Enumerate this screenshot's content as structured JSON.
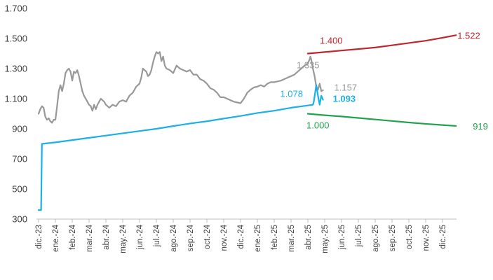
{
  "chart_data": {
    "type": "line",
    "title": "",
    "xlabel": "",
    "ylabel": "",
    "ylim": [
      300,
      1700
    ],
    "y_ticks": [
      300,
      500,
      700,
      900,
      1100,
      1300,
      1500,
      1700
    ],
    "y_tick_labels": [
      "300",
      "500",
      "700",
      "900",
      "1.100",
      "1.300",
      "1.500",
      "1.700"
    ],
    "x_tick_labels": [
      "dic.-23",
      "ene.-24",
      "feb.-24",
      "mar.-24",
      "abr.-24",
      "may.-24",
      "jun.-24",
      "jul.-24",
      "ago.-24",
      "sep.-24",
      "oct.-24",
      "nov.-24",
      "dic.-24",
      "ene.-25",
      "feb.-25",
      "mar.-25",
      "abr.-25",
      "may.-25",
      "jun.-25",
      "jul.-25",
      "ago.-25",
      "sep.-25",
      "oct.-25",
      "nov.-25",
      "dic.-25"
    ],
    "x_range_months": [
      0,
      24.8
    ],
    "grid": "none",
    "legend": "none",
    "series": [
      {
        "color": "#999999",
        "points": [
          [
            0.0,
            1000
          ],
          [
            0.1,
            1030
          ],
          [
            0.2,
            1050
          ],
          [
            0.3,
            1040
          ],
          [
            0.4,
            980
          ],
          [
            0.5,
            960
          ],
          [
            0.6,
            970
          ],
          [
            0.7,
            950
          ],
          [
            0.8,
            940
          ],
          [
            0.9,
            960
          ],
          [
            1.0,
            960
          ],
          [
            1.1,
            1050
          ],
          [
            1.2,
            1150
          ],
          [
            1.3,
            1190
          ],
          [
            1.4,
            1150
          ],
          [
            1.5,
            1200
          ],
          [
            1.6,
            1270
          ],
          [
            1.7,
            1290
          ],
          [
            1.8,
            1300
          ],
          [
            1.9,
            1280
          ],
          [
            2.0,
            1220
          ],
          [
            2.1,
            1280
          ],
          [
            2.2,
            1270
          ],
          [
            2.3,
            1290
          ],
          [
            2.4,
            1250
          ],
          [
            2.5,
            1200
          ],
          [
            2.6,
            1150
          ],
          [
            2.7,
            1120
          ],
          [
            2.8,
            1100
          ],
          [
            2.9,
            1080
          ],
          [
            3.0,
            1060
          ],
          [
            3.1,
            1050
          ],
          [
            3.2,
            1020
          ],
          [
            3.3,
            1060
          ],
          [
            3.4,
            1030
          ],
          [
            3.5,
            1060
          ],
          [
            3.6,
            1080
          ],
          [
            3.7,
            1100
          ],
          [
            3.8,
            1090
          ],
          [
            3.9,
            1080
          ],
          [
            4.0,
            1060
          ],
          [
            4.2,
            1040
          ],
          [
            4.4,
            1060
          ],
          [
            4.6,
            1050
          ],
          [
            4.8,
            1080
          ],
          [
            5.0,
            1090
          ],
          [
            5.2,
            1080
          ],
          [
            5.4,
            1120
          ],
          [
            5.6,
            1140
          ],
          [
            5.8,
            1180
          ],
          [
            6.0,
            1200
          ],
          [
            6.1,
            1240
          ],
          [
            6.2,
            1300
          ],
          [
            6.3,
            1290
          ],
          [
            6.4,
            1280
          ],
          [
            6.5,
            1250
          ],
          [
            6.6,
            1260
          ],
          [
            6.7,
            1290
          ],
          [
            6.8,
            1340
          ],
          [
            6.9,
            1380
          ],
          [
            7.0,
            1410
          ],
          [
            7.1,
            1400
          ],
          [
            7.2,
            1410
          ],
          [
            7.3,
            1350
          ],
          [
            7.4,
            1380
          ],
          [
            7.5,
            1320
          ],
          [
            7.6,
            1300
          ],
          [
            7.8,
            1290
          ],
          [
            8.0,
            1270
          ],
          [
            8.2,
            1320
          ],
          [
            8.4,
            1300
          ],
          [
            8.6,
            1290
          ],
          [
            8.8,
            1280
          ],
          [
            9.0,
            1290
          ],
          [
            9.2,
            1260
          ],
          [
            9.4,
            1260
          ],
          [
            9.6,
            1230
          ],
          [
            9.8,
            1220
          ],
          [
            10.0,
            1200
          ],
          [
            10.2,
            1170
          ],
          [
            10.4,
            1160
          ],
          [
            10.6,
            1140
          ],
          [
            10.8,
            1110
          ],
          [
            11.0,
            1110
          ],
          [
            11.2,
            1100
          ],
          [
            11.4,
            1090
          ],
          [
            11.6,
            1080
          ],
          [
            11.8,
            1075
          ],
          [
            12.0,
            1070
          ],
          [
            12.2,
            1100
          ],
          [
            12.4,
            1140
          ],
          [
            12.6,
            1160
          ],
          [
            12.8,
            1175
          ],
          [
            13.0,
            1180
          ],
          [
            13.2,
            1190
          ],
          [
            13.4,
            1180
          ],
          [
            13.6,
            1200
          ],
          [
            13.8,
            1210
          ],
          [
            14.0,
            1210
          ],
          [
            14.2,
            1215
          ],
          [
            14.4,
            1220
          ],
          [
            14.6,
            1230
          ],
          [
            14.8,
            1240
          ],
          [
            15.0,
            1250
          ],
          [
            15.2,
            1260
          ],
          [
            15.4,
            1280
          ],
          [
            15.6,
            1300
          ],
          [
            15.8,
            1320
          ],
          [
            16.0,
            1335
          ],
          [
            16.1,
            1360
          ],
          [
            16.15,
            1380
          ],
          [
            16.2,
            1360
          ],
          [
            16.3,
            1300
          ],
          [
            16.4,
            1250
          ],
          [
            16.5,
            1180
          ],
          [
            16.6,
            1160
          ],
          [
            16.7,
            1200
          ],
          [
            16.8,
            1150
          ],
          [
            16.9,
            1157
          ]
        ]
      },
      {
        "color": "#1bb0e6",
        "points": [
          [
            0.0,
            360
          ],
          [
            0.15,
            360
          ],
          [
            0.2,
            800
          ],
          [
            1.0,
            810
          ],
          [
            2.0,
            825
          ],
          [
            3.0,
            840
          ],
          [
            4.0,
            855
          ],
          [
            5.0,
            870
          ],
          [
            6.0,
            885
          ],
          [
            7.0,
            900
          ],
          [
            8.0,
            918
          ],
          [
            9.0,
            935
          ],
          [
            10.0,
            950
          ],
          [
            11.0,
            968
          ],
          [
            12.0,
            985
          ],
          [
            13.0,
            1005
          ],
          [
            14.0,
            1020
          ],
          [
            15.0,
            1040
          ],
          [
            16.0,
            1055
          ],
          [
            16.3,
            1060
          ],
          [
            16.35,
            1078
          ],
          [
            16.5,
            1190
          ],
          [
            16.6,
            1120
          ],
          [
            16.7,
            1060
          ],
          [
            16.8,
            1120
          ],
          [
            16.9,
            1093
          ]
        ]
      },
      {
        "color": "#c0262d",
        "points": [
          [
            16.0,
            1400
          ],
          [
            17.0,
            1410
          ],
          [
            18.0,
            1420
          ],
          [
            19.0,
            1430
          ],
          [
            20.0,
            1440
          ],
          [
            21.0,
            1455
          ],
          [
            22.0,
            1470
          ],
          [
            23.0,
            1485
          ],
          [
            24.0,
            1505
          ],
          [
            24.8,
            1522
          ]
        ]
      },
      {
        "color": "#22a24d",
        "points": [
          [
            16.0,
            1000
          ],
          [
            17.0,
            990
          ],
          [
            18.0,
            982
          ],
          [
            19.0,
            972
          ],
          [
            20.0,
            962
          ],
          [
            21.0,
            952
          ],
          [
            22.0,
            942
          ],
          [
            23.0,
            933
          ],
          [
            24.0,
            925
          ],
          [
            24.8,
            919
          ]
        ]
      }
    ],
    "annotations": [
      {
        "text": "1.400",
        "x": 16.0,
        "y": 1400,
        "color": "#c0262d",
        "bold": false
      },
      {
        "text": "1.522",
        "x": 24.8,
        "y": 1522,
        "color": "#c0262d",
        "bold": false
      },
      {
        "text": "1.335",
        "x": 16.0,
        "y": 1335,
        "color": "#999999",
        "bold": false
      },
      {
        "text": "1.078",
        "x": 16.35,
        "y": 1078,
        "color": "#1bb0e6",
        "bold": false
      },
      {
        "text": "1.157",
        "x": 16.9,
        "y": 1157,
        "color": "#999999",
        "bold": false
      },
      {
        "text": "1.093",
        "x": 16.9,
        "y": 1093,
        "color": "#1bb0e6",
        "bold": true
      },
      {
        "text": "1.000",
        "x": 16.0,
        "y": 1000,
        "color": "#22a24d",
        "bold": false
      },
      {
        "text": "919",
        "x": 24.8,
        "y": 919,
        "color": "#22a24d",
        "bold": false
      }
    ]
  }
}
